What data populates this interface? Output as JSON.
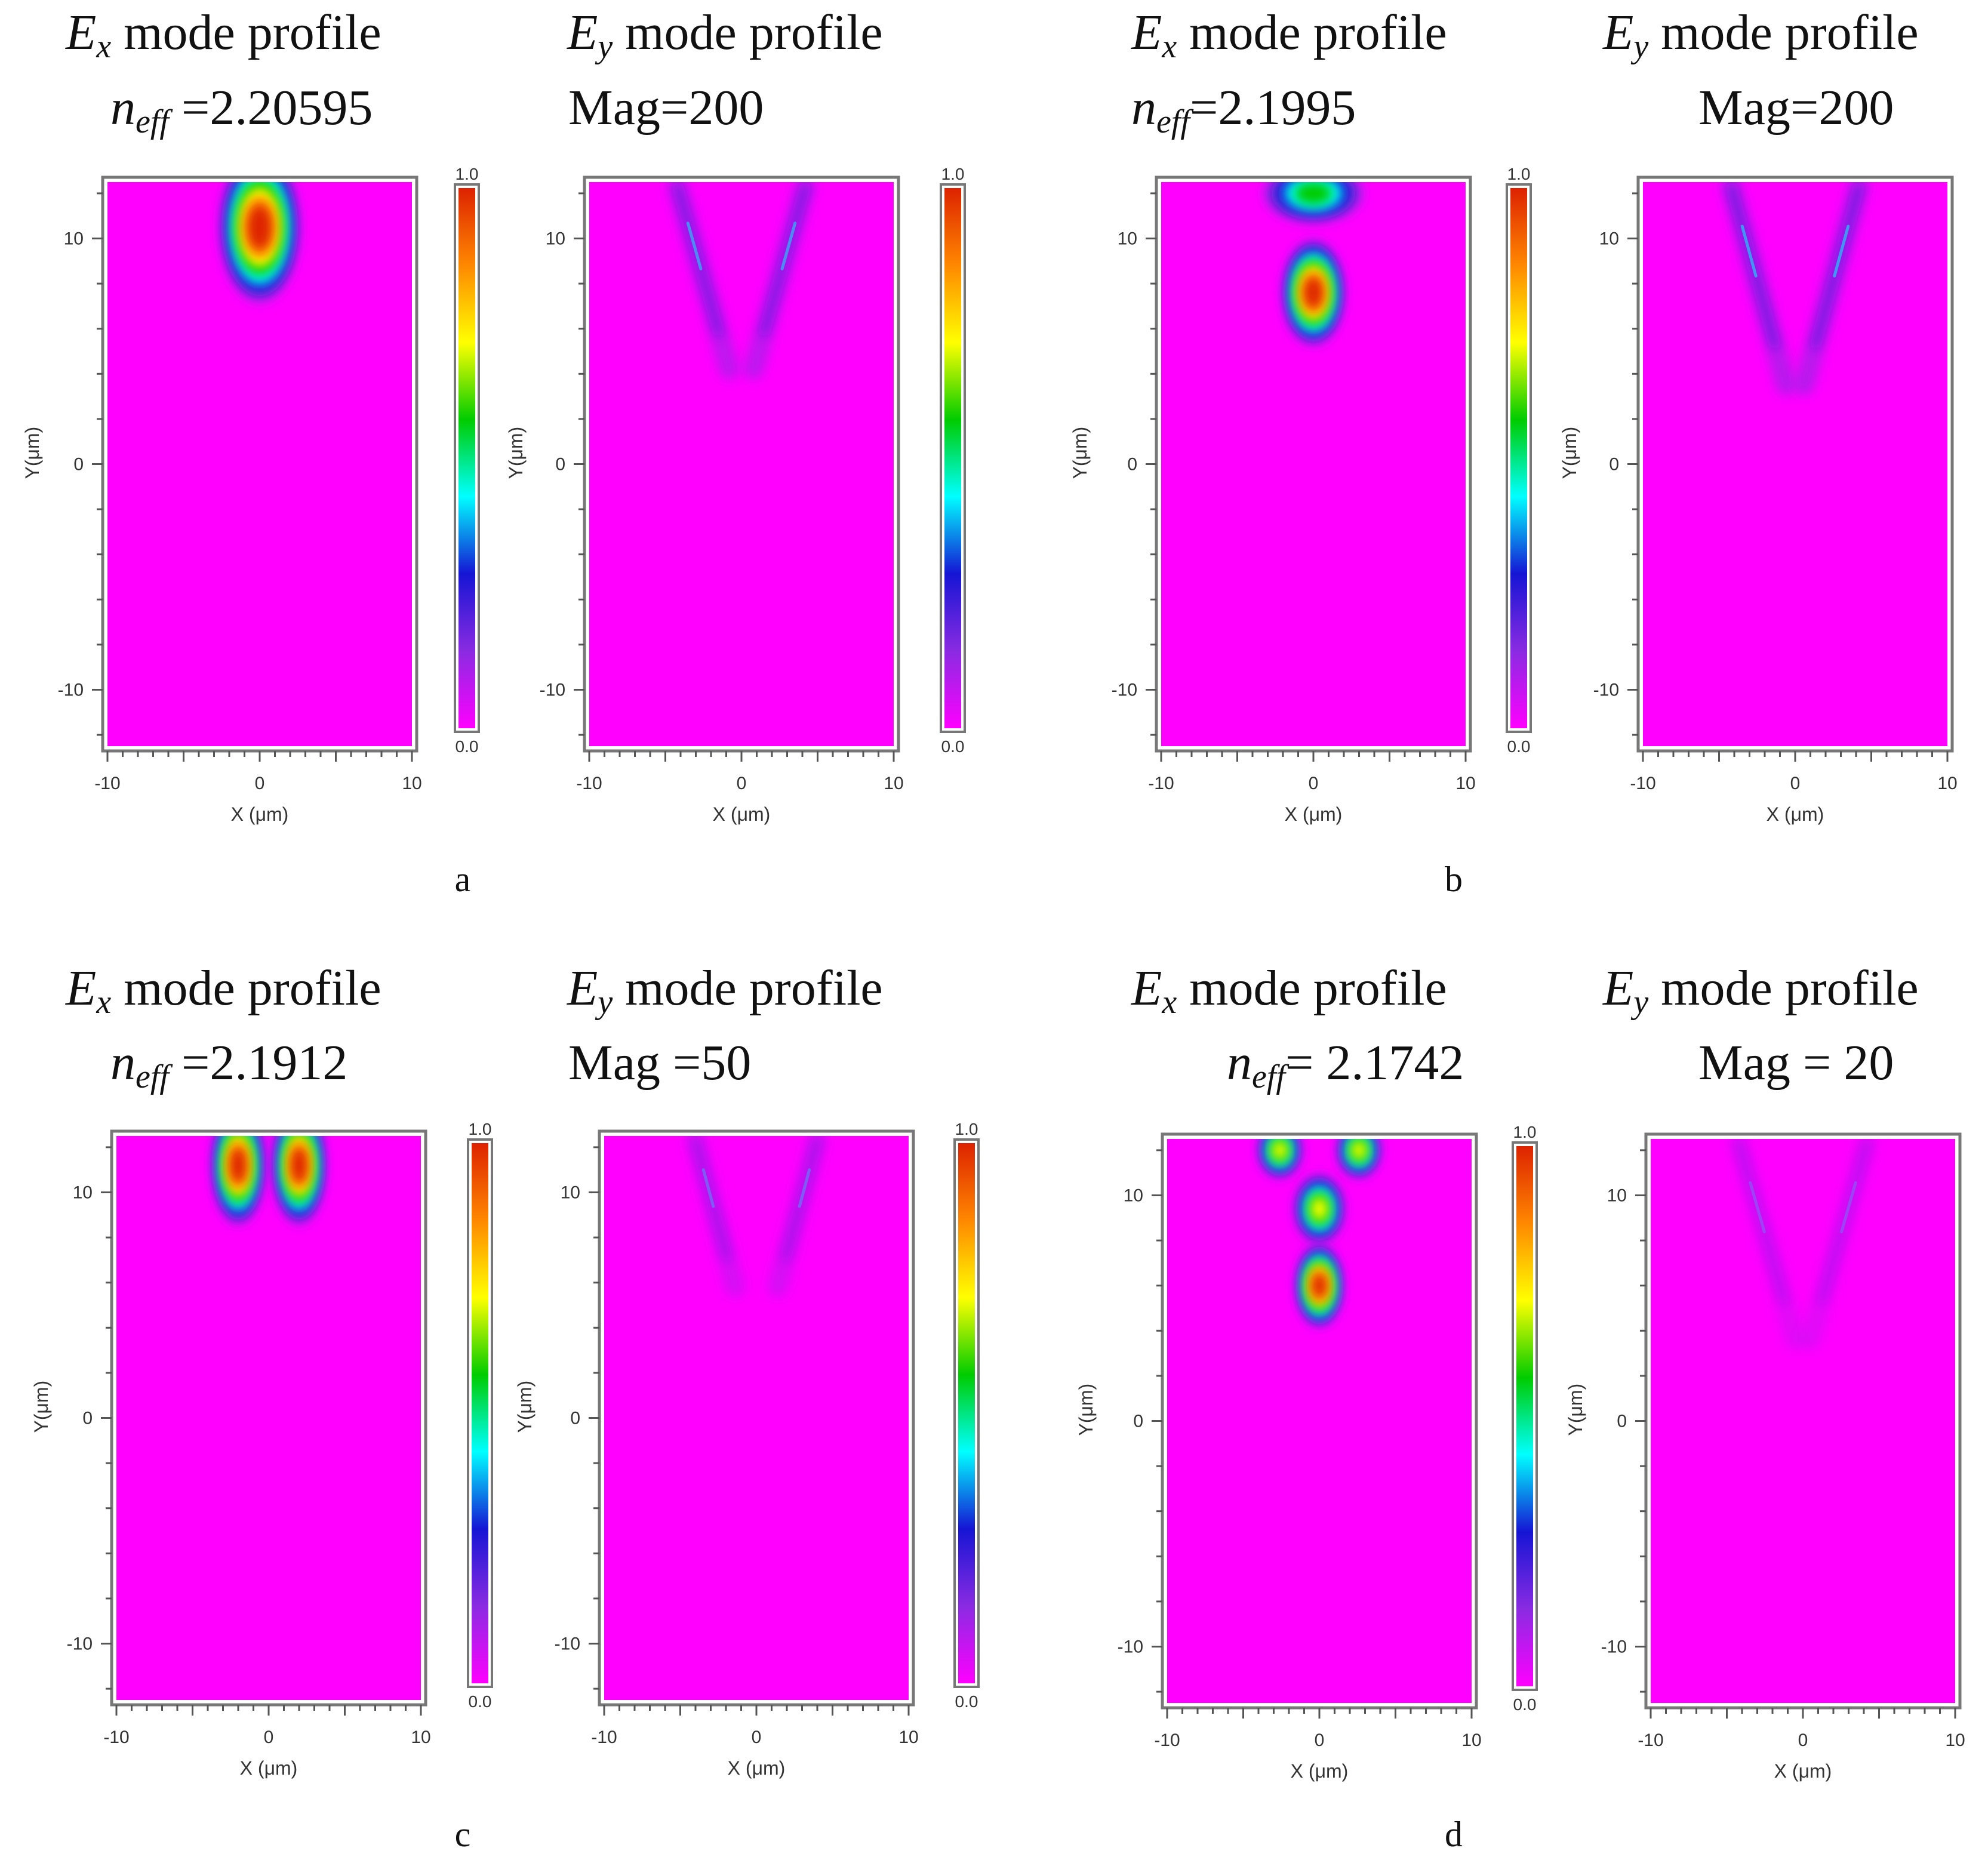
{
  "colors": {
    "background": "#ff00ff",
    "plot_frame": "#777777",
    "colormap": [
      "#ff00ff",
      "#8a2be2",
      "#1515d4",
      "#00ffff",
      "#00cc00",
      "#ffff00",
      "#ff8800",
      "#dd2200"
    ]
  },
  "chart_data": [
    {
      "type": "heatmap",
      "panel_label": "a",
      "plot": "Ex",
      "title_field": "E",
      "title_sub": "x",
      "title_rest": " mode profile",
      "line2_sym": "n",
      "line2_sub": "eff",
      "line2_text": " =2.20595",
      "xlabel": "X (μm)",
      "ylabel": "Y(μm)",
      "xlim": [
        -10,
        10
      ],
      "ylim": [
        -12.5,
        12.5
      ],
      "xticks": [
        "-10",
        "0",
        "10"
      ],
      "yticks": [
        "10",
        "0",
        "-10"
      ],
      "colorbar": {
        "min": "0.0",
        "max": "1.0"
      },
      "field_lobes": [
        {
          "x": 0,
          "y": 10.5,
          "sx": 2.6,
          "sy": 3.3,
          "amp": 1.0
        }
      ]
    },
    {
      "type": "heatmap",
      "panel_label": "a",
      "plot": "Ey",
      "title_field": "E",
      "title_sub": "y",
      "title_rest": " mode profile",
      "line2_text": "Mag=200",
      "xlabel": "X (μm)",
      "ylabel": "Y(μm)",
      "xlim": [
        -10,
        10
      ],
      "ylim": [
        -12.5,
        12.5
      ],
      "xticks": [
        "-10",
        "0",
        "10"
      ],
      "yticks": [
        "10",
        "0",
        "-10"
      ],
      "colorbar": {
        "min": "0.0",
        "max": "1.0"
      },
      "field_lines": [
        {
          "x1": -4.2,
          "y1": 12.3,
          "x2": -0.8,
          "y2": 4.2,
          "amp": 0.55
        },
        {
          "x1": 4.2,
          "y1": 12.3,
          "x2": 0.8,
          "y2": 4.2,
          "amp": 0.55
        }
      ]
    },
    {
      "type": "heatmap",
      "panel_label": "b",
      "plot": "Ex",
      "title_field": "E",
      "title_sub": "x",
      "title_rest": " mode profile",
      "line2_sym": "n",
      "line2_sub": "eff",
      "line2_text": "=2.1995",
      "xlabel": "X (μm)",
      "ylabel": "Y(μm)",
      "xlim": [
        -10,
        10
      ],
      "ylim": [
        -12.5,
        12.5
      ],
      "xticks": [
        "-10",
        "0",
        "10"
      ],
      "yticks": [
        "10",
        "0",
        "-10"
      ],
      "colorbar": {
        "min": "0.0",
        "max": "1.0"
      },
      "field_lobes": [
        {
          "x": 0,
          "y": 12.0,
          "sx": 3.2,
          "sy": 1.3,
          "amp": 0.6
        },
        {
          "x": 0,
          "y": 7.6,
          "sx": 2.0,
          "sy": 2.3,
          "amp": 1.0
        }
      ]
    },
    {
      "type": "heatmap",
      "panel_label": "b",
      "plot": "Ey",
      "title_field": "E",
      "title_sub": "y",
      "title_rest": " mode profile",
      "line2_text": "Mag=200",
      "xlabel": "X (μm)",
      "ylabel": "Y(μm)",
      "xlim": [
        -10,
        10
      ],
      "ylim": [
        -12.5,
        12.5
      ],
      "xticks": [
        "-10",
        "0",
        "10"
      ],
      "yticks": [
        "10",
        "0",
        "-10"
      ],
      "colorbar": null,
      "field_lines": [
        {
          "x1": -4.2,
          "y1": 12.3,
          "x2": -0.6,
          "y2": 3.5,
          "amp": 0.6
        },
        {
          "x1": 4.2,
          "y1": 12.3,
          "x2": 0.6,
          "y2": 3.5,
          "amp": 0.6
        }
      ]
    },
    {
      "type": "heatmap",
      "panel_label": "c",
      "plot": "Ex",
      "title_field": "E",
      "title_sub": "x",
      "title_rest": " mode profile",
      "line2_sym": "n",
      "line2_sub": "eff",
      "line2_text": " =2.1912",
      "xlabel": "X (μm)",
      "ylabel": "Y(μm)",
      "xlim": [
        -10,
        10
      ],
      "ylim": [
        -12.5,
        12.5
      ],
      "xticks": [
        "-10",
        "0",
        "10"
      ],
      "yticks": [
        "10",
        "0",
        "-10"
      ],
      "colorbar": {
        "min": "0.0",
        "max": "1.0"
      },
      "field_lobes": [
        {
          "x": -2.0,
          "y": 11.2,
          "sx": 1.7,
          "sy": 2.6,
          "amp": 1.0
        },
        {
          "x": 2.0,
          "y": 11.2,
          "sx": 1.7,
          "sy": 2.6,
          "amp": 1.0
        }
      ]
    },
    {
      "type": "heatmap",
      "panel_label": "c",
      "plot": "Ey",
      "title_field": "E",
      "title_sub": "y",
      "title_rest": " mode profile",
      "line2_text": "Mag =50",
      "xlabel": "X (μm)",
      "ylabel": "Y(μm)",
      "xlim": [
        -10,
        10
      ],
      "ylim": [
        -12.5,
        12.5
      ],
      "xticks": [
        "-10",
        "0",
        "10"
      ],
      "yticks": [
        "10",
        "0",
        "-10"
      ],
      "colorbar": {
        "min": "0.0",
        "max": "1.0"
      },
      "field_lines": [
        {
          "x1": -4.0,
          "y1": 12.3,
          "x2": -1.4,
          "y2": 5.8,
          "amp": 0.35
        },
        {
          "x1": 4.0,
          "y1": 12.3,
          "x2": 1.4,
          "y2": 5.8,
          "amp": 0.35
        }
      ]
    },
    {
      "type": "heatmap",
      "panel_label": "d",
      "plot": "Ex",
      "title_field": "E",
      "title_sub": "x",
      "title_rest": " mode profile",
      "line2_sym": "n",
      "line2_sub": "eff",
      "line2_text": "= 2.1742",
      "xlabel": "X (μm)",
      "ylabel": "Y(μm)",
      "xlim": [
        -10,
        10
      ],
      "ylim": [
        -12.5,
        12.5
      ],
      "xticks": [
        "-10",
        "0",
        "10"
      ],
      "yticks": [
        "10",
        "0",
        "-10"
      ],
      "colorbar": {
        "min": "0.0",
        "max": "1.0"
      },
      "field_lobes": [
        {
          "x": -2.6,
          "y": 12.0,
          "sx": 1.4,
          "sy": 1.2,
          "amp": 0.7
        },
        {
          "x": 2.6,
          "y": 12.0,
          "sx": 1.4,
          "sy": 1.2,
          "amp": 0.7
        },
        {
          "x": 0,
          "y": 9.4,
          "sx": 1.6,
          "sy": 1.5,
          "amp": 0.75
        },
        {
          "x": 0,
          "y": 6.0,
          "sx": 1.5,
          "sy": 1.8,
          "amp": 1.0
        }
      ]
    },
    {
      "type": "heatmap",
      "panel_label": "d",
      "plot": "Ey",
      "title_field": "E",
      "title_sub": "y",
      "title_rest": " mode profile",
      "line2_text": "Mag = 20",
      "xlabel": "X (μm)",
      "ylabel": "Y(μm)",
      "xlim": [
        -10,
        10
      ],
      "ylim": [
        -12.5,
        12.5
      ],
      "xticks": [
        "-10",
        "0",
        "10"
      ],
      "yticks": [
        "10",
        "0",
        "-10"
      ],
      "colorbar": null,
      "field_lines": [
        {
          "x1": -4.2,
          "y1": 12.3,
          "x2": -0.5,
          "y2": 3.6,
          "amp": 0.25
        },
        {
          "x1": 4.2,
          "y1": 12.3,
          "x2": 0.5,
          "y2": 3.6,
          "amp": 0.25
        }
      ]
    }
  ]
}
